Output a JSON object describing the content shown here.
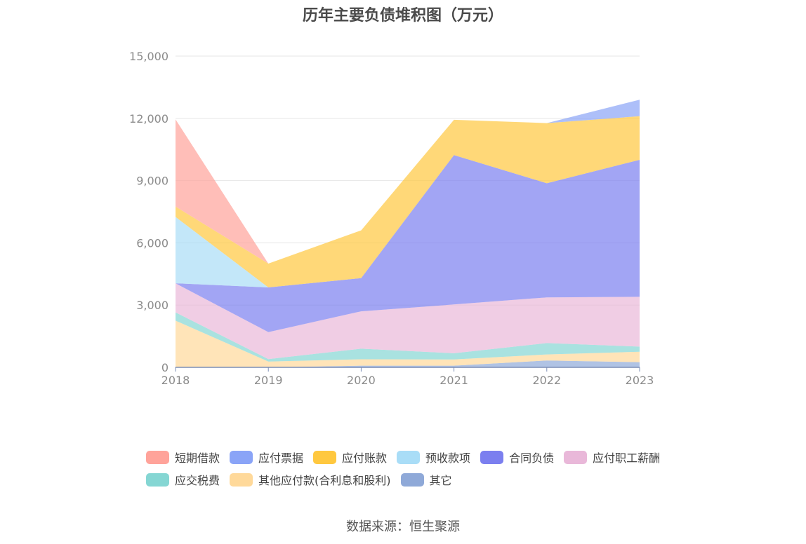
{
  "chart_data": {
    "type": "area",
    "stacked": true,
    "title": "历年主要负债堆积图（万元）",
    "source": "数据来源：恒生聚源",
    "x": [
      "2018",
      "2019",
      "2020",
      "2021",
      "2022",
      "2023"
    ],
    "ylim": [
      0,
      15000
    ],
    "yticks": [
      "0",
      "3,000",
      "6,000",
      "9,000",
      "12,000",
      "15,000"
    ],
    "ytick_values": [
      0,
      3000,
      6000,
      9000,
      12000,
      15000
    ],
    "grid": true,
    "legend_position": "bottom",
    "series": [
      {
        "name": "其它",
        "color": "#8fa9d8",
        "values": [
          0,
          0,
          80,
          80,
          330,
          250
        ]
      },
      {
        "name": "其他应付款(合利息和股利)",
        "color": "#ffd99a",
        "values": [
          2250,
          280,
          310,
          300,
          290,
          500
        ]
      },
      {
        "name": "应交税费",
        "color": "#85d6d3",
        "values": [
          400,
          120,
          510,
          300,
          550,
          250
        ]
      },
      {
        "name": "应付职工薪酬",
        "color": "#e9b8d9",
        "values": [
          1400,
          1300,
          1800,
          2350,
          2200,
          2400
        ]
      },
      {
        "name": "合同负债",
        "color": "#7b7fef",
        "values": [
          0,
          2150,
          1600,
          7200,
          5500,
          6600
        ]
      },
      {
        "name": "预收款项",
        "color": "#a9ddf7",
        "values": [
          3200,
          0,
          0,
          0,
          0,
          0
        ]
      },
      {
        "name": "应付账款",
        "color": "#ffc83f",
        "values": [
          500,
          1150,
          2300,
          1700,
          2900,
          2100
        ]
      },
      {
        "name": "应付票据",
        "color": "#8aa4f7",
        "values": [
          0,
          0,
          0,
          0,
          0,
          800
        ]
      },
      {
        "name": "短期借款",
        "color": "#ffa39a",
        "values": [
          4200,
          0,
          0,
          0,
          0,
          0
        ]
      }
    ],
    "legend_order": [
      "短期借款",
      "应付票据",
      "应付账款",
      "预收款项",
      "合同负债",
      "应付职工薪酬",
      "应交税费",
      "其他应付款(合利息和股利)",
      "其它"
    ]
  }
}
